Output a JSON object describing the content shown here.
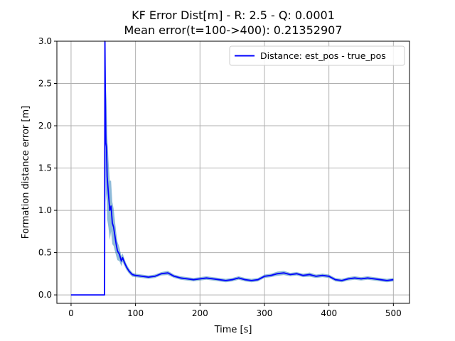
{
  "chart_data": {
    "type": "line",
    "title": "KF Error Dist[m] - R: 2.5 - Q: 0.0001",
    "subtitle": "Mean error(t=100->400): 0.21352907",
    "xlabel": "Time [s]",
    "ylabel": "Formation distance error [m]",
    "xlim": [
      -22,
      525
    ],
    "ylim": [
      -0.1,
      3.0
    ],
    "x_ticks": [
      0,
      100,
      200,
      300,
      400,
      500
    ],
    "y_ticks": [
      0.0,
      0.5,
      1.0,
      1.5,
      2.0,
      2.5,
      3.0
    ],
    "x_tick_labels": [
      "0",
      "100",
      "200",
      "300",
      "400",
      "500"
    ],
    "y_tick_labels": [
      "0.0",
      "0.5",
      "1.0",
      "1.5",
      "2.0",
      "2.5",
      "3.0"
    ],
    "grid": true,
    "legend": {
      "position": "top-right",
      "entries": [
        "Distance: est_pos - true_pos"
      ]
    },
    "series": [
      {
        "name": "Distance: est_pos - true_pos",
        "color": "#0000ff",
        "band_color": "#1f77b4",
        "x": [
          0,
          52,
          52.5,
          53,
          54,
          55,
          56,
          57,
          58,
          60,
          62,
          64,
          66,
          68,
          70,
          72,
          75,
          78,
          80,
          83,
          86,
          90,
          95,
          100,
          110,
          120,
          130,
          140,
          150,
          160,
          170,
          180,
          190,
          200,
          210,
          220,
          230,
          240,
          250,
          260,
          270,
          280,
          290,
          300,
          310,
          320,
          330,
          340,
          350,
          360,
          370,
          380,
          390,
          400,
          410,
          420,
          430,
          440,
          450,
          460,
          470,
          480,
          490,
          500
        ],
        "y": [
          0.0,
          0.0,
          3.0,
          2.5,
          1.8,
          1.75,
          1.4,
          1.3,
          1.2,
          1.0,
          1.05,
          0.85,
          0.8,
          0.7,
          0.6,
          0.52,
          0.48,
          0.4,
          0.44,
          0.38,
          0.33,
          0.28,
          0.24,
          0.23,
          0.22,
          0.21,
          0.22,
          0.25,
          0.26,
          0.22,
          0.2,
          0.19,
          0.18,
          0.19,
          0.2,
          0.19,
          0.18,
          0.17,
          0.18,
          0.2,
          0.18,
          0.17,
          0.18,
          0.22,
          0.23,
          0.25,
          0.26,
          0.24,
          0.25,
          0.23,
          0.24,
          0.22,
          0.23,
          0.22,
          0.18,
          0.17,
          0.19,
          0.2,
          0.19,
          0.2,
          0.19,
          0.18,
          0.17,
          0.18
        ],
        "band": [
          0,
          0,
          0.2,
          0.5,
          0.7,
          0.55,
          0.5,
          0.45,
          0.4,
          0.35,
          0.3,
          0.25,
          0.22,
          0.18,
          0.14,
          0.11,
          0.08,
          0.06,
          0.05,
          0.04,
          0.035,
          0.03,
          0.025,
          0.02,
          0.02,
          0.02,
          0.02,
          0.02,
          0.025,
          0.02,
          0.02,
          0.02,
          0.02,
          0.02,
          0.02,
          0.02,
          0.02,
          0.02,
          0.02,
          0.02,
          0.02,
          0.02,
          0.02,
          0.02,
          0.02,
          0.025,
          0.025,
          0.02,
          0.02,
          0.02,
          0.025,
          0.02,
          0.02,
          0.02,
          0.02,
          0.02,
          0.02,
          0.02,
          0.02,
          0.02,
          0.02,
          0.02,
          0.02,
          0.02
        ]
      }
    ]
  }
}
